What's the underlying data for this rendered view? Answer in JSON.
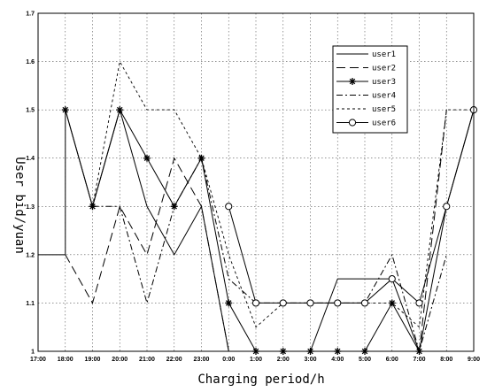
{
  "chart_data": {
    "type": "line",
    "title": "",
    "xlabel": "Charging period/h",
    "ylabel": "User bid/yuan",
    "ylim": [
      1.0,
      1.7
    ],
    "y_ticks": [
      "1",
      "1.1",
      "1.2",
      "1.3",
      "1.4",
      "1.5",
      "1.6",
      "1.7"
    ],
    "x_ticks": [
      "17:00",
      "18:00",
      "19:00",
      "20:00",
      "21:00",
      "22:00",
      "23:00",
      "0:00",
      "1:00",
      "2:00",
      "3:00",
      "4:00",
      "5:00",
      "6:00",
      "7:00",
      "8:00",
      "9:00"
    ],
    "grid": true,
    "legend_position": "top-right",
    "series": [
      {
        "name": "user1",
        "style": "solid",
        "marker": "none",
        "points": [
          [
            "17:00",
            1.2
          ],
          [
            "18:00",
            1.2
          ],
          [
            "18:00",
            1.5
          ],
          [
            "19:00",
            1.3
          ],
          [
            "20:00",
            1.5
          ],
          [
            "21:00",
            1.3
          ],
          [
            "22:00",
            1.2
          ],
          [
            "23:00",
            1.3
          ],
          [
            "0:00",
            1.0
          ],
          [
            "1:00",
            1.0
          ],
          [
            "2:00",
            1.0
          ],
          [
            "3:00",
            1.0
          ],
          [
            "4:00",
            1.15
          ],
          [
            "5:00",
            1.15
          ],
          [
            "6:00",
            1.15
          ],
          [
            "7:00",
            1.0
          ],
          [
            "8:00",
            1.3
          ],
          [
            "9:00",
            1.5
          ]
        ]
      },
      {
        "name": "user2",
        "style": "longdash",
        "marker": "none",
        "points": [
          [
            "18:00",
            1.2
          ],
          [
            "19:00",
            1.1
          ],
          [
            "20:00",
            1.3
          ],
          [
            "21:00",
            1.2
          ],
          [
            "22:00",
            1.4
          ],
          [
            "23:00",
            1.3
          ],
          [
            "0:00",
            1.0
          ],
          [
            "1:00",
            1.0
          ],
          [
            "2:00",
            1.0
          ],
          [
            "3:00",
            1.0
          ],
          [
            "4:00",
            1.0
          ],
          [
            "5:00",
            1.0
          ],
          [
            "6:00",
            1.0
          ],
          [
            "7:00",
            1.0
          ],
          [
            "8:00",
            1.5
          ]
        ]
      },
      {
        "name": "user3",
        "style": "solid",
        "marker": "star",
        "points": [
          [
            "18:00",
            1.5
          ],
          [
            "19:00",
            1.3
          ],
          [
            "20:00",
            1.5
          ],
          [
            "21:00",
            1.4
          ],
          [
            "22:00",
            1.3
          ],
          [
            "23:00",
            1.4
          ],
          [
            "0:00",
            1.1
          ],
          [
            "1:00",
            1.0
          ],
          [
            "2:00",
            1.0
          ],
          [
            "3:00",
            1.0
          ],
          [
            "4:00",
            1.0
          ],
          [
            "5:00",
            1.0
          ],
          [
            "6:00",
            1.1
          ],
          [
            "7:00",
            1.0
          ]
        ]
      },
      {
        "name": "user4",
        "style": "dashdot",
        "marker": "none",
        "points": [
          [
            "19:00",
            1.3
          ],
          [
            "20:00",
            1.3
          ],
          [
            "21:00",
            1.1
          ],
          [
            "22:00",
            1.3
          ],
          [
            "23:00",
            1.4
          ],
          [
            "0:00",
            1.15
          ],
          [
            "1:00",
            1.1
          ],
          [
            "2:00",
            1.1
          ],
          [
            "3:00",
            1.1
          ],
          [
            "4:00",
            1.1
          ],
          [
            "5:00",
            1.1
          ],
          [
            "6:00",
            1.2
          ],
          [
            "7:00",
            1.0
          ],
          [
            "8:00",
            1.2
          ]
        ]
      },
      {
        "name": "user5",
        "style": "dotted",
        "marker": "none",
        "points": [
          [
            "19:00",
            1.3
          ],
          [
            "20:00",
            1.6
          ],
          [
            "21:00",
            1.5
          ],
          [
            "22:00",
            1.5
          ],
          [
            "23:00",
            1.4
          ],
          [
            "0:00",
            1.2
          ],
          [
            "1:00",
            1.05
          ],
          [
            "2:00",
            1.1
          ],
          [
            "3:00",
            1.1
          ],
          [
            "4:00",
            1.1
          ],
          [
            "5:00",
            1.1
          ],
          [
            "6:00",
            1.1
          ],
          [
            "7:00",
            1.05
          ],
          [
            "8:00",
            1.5
          ],
          [
            "9:00",
            1.5
          ]
        ]
      },
      {
        "name": "user6",
        "style": "solid",
        "marker": "circle",
        "points": [
          [
            "0:00",
            1.3
          ],
          [
            "1:00",
            1.1
          ],
          [
            "2:00",
            1.1
          ],
          [
            "3:00",
            1.1
          ],
          [
            "4:00",
            1.1
          ],
          [
            "5:00",
            1.1
          ],
          [
            "6:00",
            1.15
          ],
          [
            "7:00",
            1.1
          ],
          [
            "8:00",
            1.3
          ],
          [
            "9:00",
            1.5
          ]
        ]
      }
    ]
  }
}
